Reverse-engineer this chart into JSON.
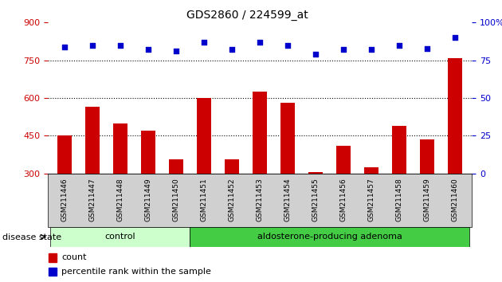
{
  "title": "GDS2860 / 224599_at",
  "samples": [
    "GSM211446",
    "GSM211447",
    "GSM211448",
    "GSM211449",
    "GSM211450",
    "GSM211451",
    "GSM211452",
    "GSM211453",
    "GSM211454",
    "GSM211455",
    "GSM211456",
    "GSM211457",
    "GSM211458",
    "GSM211459",
    "GSM211460"
  ],
  "counts": [
    450,
    565,
    500,
    470,
    355,
    600,
    355,
    625,
    580,
    305,
    410,
    325,
    490,
    435,
    760
  ],
  "percentiles": [
    84,
    85,
    85,
    82,
    81,
    87,
    82,
    87,
    85,
    79,
    82,
    82,
    85,
    83,
    90
  ],
  "ylim_left": [
    300,
    900
  ],
  "ylim_right": [
    0,
    100
  ],
  "yticks_left": [
    300,
    450,
    600,
    750,
    900
  ],
  "yticks_right": [
    0,
    25,
    50,
    75,
    100
  ],
  "bar_color": "#cc0000",
  "dot_color": "#0000cc",
  "label_bg": "#d0d0d0",
  "control_bg": "#ccffcc",
  "adenoma_bg": "#44cc44",
  "n_control": 5,
  "n_adenoma": 10,
  "legend_count_label": "count",
  "legend_pct_label": "percentile rank within the sample",
  "disease_label": "disease state",
  "control_label": "control",
  "adenoma_label": "aldosterone-producing adenoma"
}
